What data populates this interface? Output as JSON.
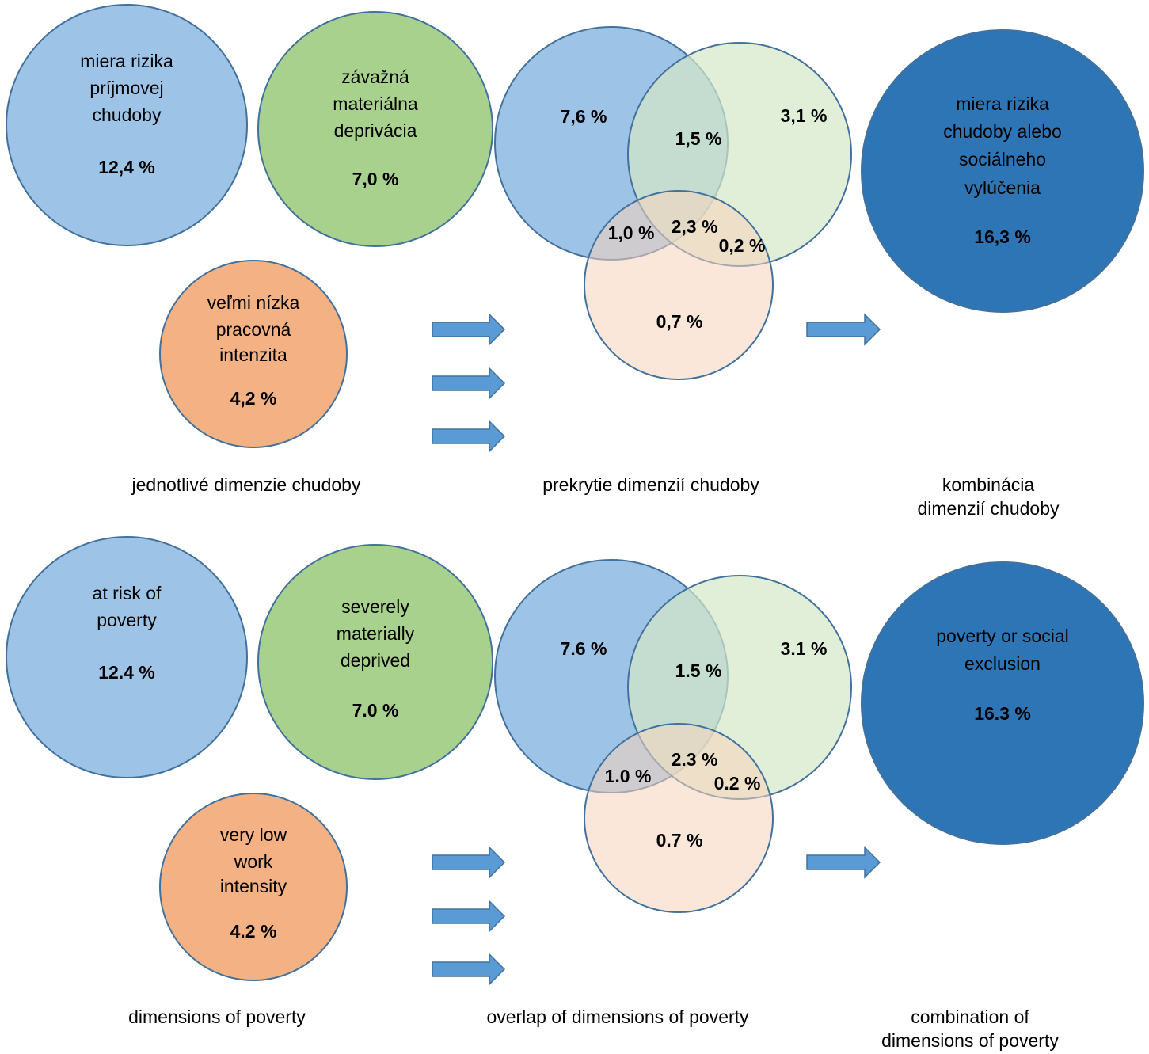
{
  "colors": {
    "income_poverty": "#9dc3e6",
    "material_deprivation": "#a9d18e",
    "work_intensity": "#f4b183",
    "combined": "#2e75b6",
    "venn_blue": "#9dc3e6",
    "venn_green": "#d5e8c8",
    "venn_orange": "#f8d4bc",
    "arrow": "#5b9bd5",
    "outline": "#41719c"
  },
  "panels": [
    {
      "language": "sk",
      "single": {
        "income_poverty": {
          "label": [
            "miera rizika",
            "príjmovej",
            "chudoby"
          ],
          "value": "12,4 %"
        },
        "material_deprivation": {
          "label": [
            "závažná",
            "materiálna",
            "deprivácia"
          ],
          "value": "7,0 %"
        },
        "work_intensity": {
          "label": [
            "veľmi nízka",
            "pracovná",
            "intenzita"
          ],
          "value": "4,2 %"
        }
      },
      "overlap": {
        "only_income": "7,6 %",
        "only_material": "3,1 %",
        "only_work": "0,7 %",
        "income_material": "1,5 %",
        "income_work": "1,0 %",
        "material_work": "0,2 %",
        "all_three": "2,3 %"
      },
      "combined": {
        "label": [
          "miera rizika",
          "chudoby alebo",
          "sociálneho",
          "vylúčenia"
        ],
        "value": "16,3 %"
      },
      "captions": {
        "single": [
          "jednotlivé dimenzie chudoby"
        ],
        "overlap": [
          "prekrytie dimenzií chudoby"
        ],
        "combined": [
          "kombinácia",
          "dimenzií chudoby"
        ]
      }
    },
    {
      "language": "en",
      "single": {
        "income_poverty": {
          "label": [
            "at risk of",
            "poverty"
          ],
          "value": "12.4 %"
        },
        "material_deprivation": {
          "label": [
            "severely",
            "materially",
            "deprived"
          ],
          "value": "7.0 %"
        },
        "work_intensity": {
          "label": [
            "very low",
            "work",
            "intensity"
          ],
          "value": "4.2 %"
        }
      },
      "overlap": {
        "only_income": "7.6 %",
        "only_material": "3.1 %",
        "only_work": "0.7 %",
        "income_material": "1.5 %",
        "income_work": "1.0 %",
        "material_work": "0.2 %",
        "all_three": "2.3 %"
      },
      "combined": {
        "label": [
          "poverty or social",
          "exclusion"
        ],
        "value": "16.3 %"
      },
      "captions": {
        "single": [
          "dimensions of poverty"
        ],
        "overlap": [
          "overlap of dimensions of poverty"
        ],
        "combined": [
          "combination of",
          "dimensions of poverty"
        ]
      }
    }
  ]
}
